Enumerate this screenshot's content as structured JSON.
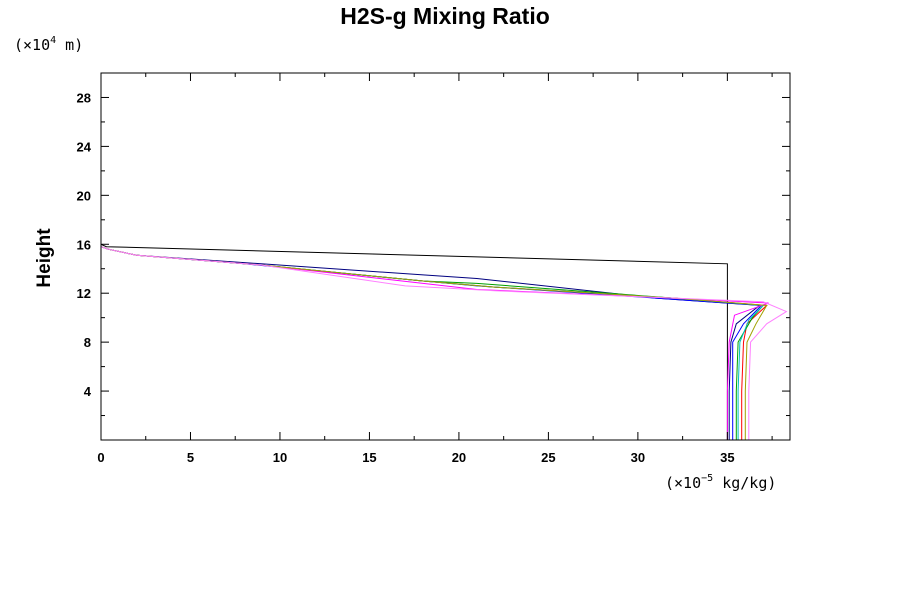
{
  "chart_data": {
    "type": "line",
    "title": "H2S-g Mixing Ratio",
    "ylabel": "Height",
    "xlabel": "",
    "x_scale_prefix": "(×10",
    "x_scale_exp": "−5",
    "x_scale_suffix": " kg/kg)",
    "y_scale_prefix": "(×10",
    "y_scale_exp": "4",
    "y_scale_suffix": " m)",
    "xlim": [
      0,
      38.5
    ],
    "ylim": [
      0,
      30
    ],
    "x_ticks": [
      0,
      5,
      10,
      15,
      20,
      25,
      30,
      35
    ],
    "y_ticks": [
      4,
      8,
      12,
      16,
      20,
      24,
      28
    ],
    "grid": false,
    "series": [
      {
        "color": "#000000",
        "x": [
          35,
          35,
          35,
          35,
          35,
          35,
          0.3,
          0,
          0
        ],
        "y": [
          0,
          4,
          8,
          11,
          13,
          14.4,
          15.8,
          16,
          30
        ]
      },
      {
        "color": "#000080",
        "x": [
          35.1,
          35.1,
          35.2,
          35.5,
          36.8,
          31,
          21,
          18,
          8,
          2,
          0.4,
          0,
          0
        ],
        "y": [
          0,
          4,
          8,
          9.5,
          11,
          11.6,
          13.2,
          13.5,
          14.5,
          15.1,
          15.6,
          15.8,
          30
        ]
      },
      {
        "color": "#ff0000",
        "x": [
          35.8,
          35.8,
          35.9,
          36.1,
          37.2,
          32,
          22,
          18,
          9,
          2,
          0.4,
          0,
          0
        ],
        "y": [
          0,
          4,
          8,
          9.5,
          11,
          11.6,
          12.5,
          13,
          14.3,
          15.1,
          15.6,
          15.8,
          30
        ]
      },
      {
        "color": "#00a000",
        "x": [
          35.5,
          35.5,
          35.6,
          36.4,
          37,
          32,
          21,
          18,
          9,
          2,
          0.4,
          0,
          0
        ],
        "y": [
          0,
          4,
          8,
          10,
          11,
          11.6,
          12.8,
          13,
          14.3,
          15.1,
          15.6,
          15.8,
          30
        ]
      },
      {
        "color": "#0000ff",
        "x": [
          35.3,
          35.3,
          35.3,
          35.9,
          36.9,
          31,
          21,
          18,
          8,
          2,
          0.4,
          0,
          0
        ],
        "y": [
          0,
          4,
          8,
          9.5,
          11,
          11.6,
          12.6,
          13,
          14.4,
          15.1,
          15.6,
          15.8,
          30
        ]
      },
      {
        "color": "#00c0c0",
        "x": [
          35.6,
          35.6,
          35.7,
          36.2,
          37,
          32,
          22,
          18,
          9,
          2,
          0.4,
          0,
          0
        ],
        "y": [
          0,
          4,
          8,
          9.8,
          11,
          11.6,
          12.5,
          13,
          14.3,
          15.1,
          15.6,
          15.8,
          30
        ]
      },
      {
        "color": "#ff00ff",
        "x": [
          35,
          35,
          35.1,
          35.4,
          37.3,
          32,
          21,
          18,
          9,
          2,
          0.4,
          0,
          0
        ],
        "y": [
          0,
          4,
          8,
          10.2,
          11.2,
          11.6,
          12.3,
          12.8,
          14.3,
          15.1,
          15.6,
          15.8,
          30
        ]
      },
      {
        "color": "#a0a000",
        "x": [
          36,
          36,
          36.1,
          36.6,
          37.2,
          32,
          22,
          18,
          9,
          2,
          0.4,
          0,
          0
        ],
        "y": [
          0,
          4,
          8,
          9.5,
          11,
          11.6,
          12.5,
          13,
          14.3,
          15.1,
          15.6,
          15.8,
          30
        ]
      },
      {
        "color": "#ff80ff",
        "x": [
          36.2,
          36.2,
          36.3,
          37.2,
          38.3,
          37,
          32,
          22,
          17,
          9,
          2,
          0.4,
          0,
          0
        ],
        "y": [
          0,
          4,
          8,
          9.5,
          10.5,
          11.3,
          11.6,
          12.2,
          12.6,
          14.3,
          15.1,
          15.6,
          15.8,
          30
        ]
      }
    ]
  }
}
